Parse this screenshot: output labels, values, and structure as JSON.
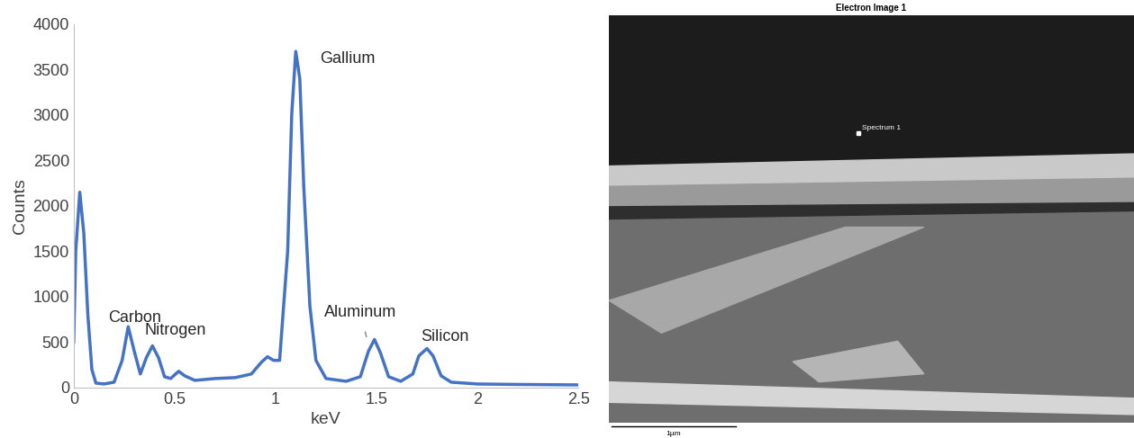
{
  "chart_data": {
    "type": "line",
    "x": [
      0.0,
      0.01,
      0.03,
      0.05,
      0.07,
      0.09,
      0.11,
      0.15,
      0.2,
      0.24,
      0.27,
      0.3,
      0.33,
      0.36,
      0.39,
      0.42,
      0.45,
      0.48,
      0.52,
      0.55,
      0.6,
      0.7,
      0.8,
      0.88,
      0.93,
      0.96,
      0.99,
      1.02,
      1.06,
      1.08,
      1.1,
      1.12,
      1.14,
      1.17,
      1.2,
      1.25,
      1.35,
      1.42,
      1.46,
      1.49,
      1.52,
      1.56,
      1.62,
      1.68,
      1.71,
      1.75,
      1.78,
      1.82,
      1.87,
      2.0,
      2.2,
      2.5
    ],
    "values": [
      500,
      1500,
      2150,
      1700,
      800,
      200,
      50,
      40,
      60,
      300,
      670,
      400,
      150,
      330,
      460,
      330,
      120,
      100,
      180,
      130,
      80,
      100,
      110,
      150,
      280,
      340,
      300,
      300,
      1500,
      3000,
      3700,
      3400,
      2200,
      900,
      300,
      100,
      70,
      120,
      400,
      530,
      380,
      120,
      70,
      150,
      350,
      430,
      350,
      130,
      60,
      40,
      35,
      30
    ],
    "color": "#4472c4",
    "xlabel": "keV",
    "ylabel": "Counts",
    "xlim": [
      0,
      2.5
    ],
    "ylim": [
      0,
      4000
    ],
    "xticks": [
      0,
      0.5,
      1,
      1.5,
      2,
      2.5
    ],
    "yticks": [
      0,
      500,
      1000,
      1500,
      2000,
      2500,
      3000,
      3500,
      4000
    ],
    "grid": false,
    "annotations": [
      "Carbon",
      "Nitrogen",
      "Gallium",
      "Aluminum",
      "Silicon"
    ]
  },
  "image": {
    "title": "Electron Image 1",
    "marker_label": "Spectrum 1",
    "scale_bar_label": "1µm"
  }
}
